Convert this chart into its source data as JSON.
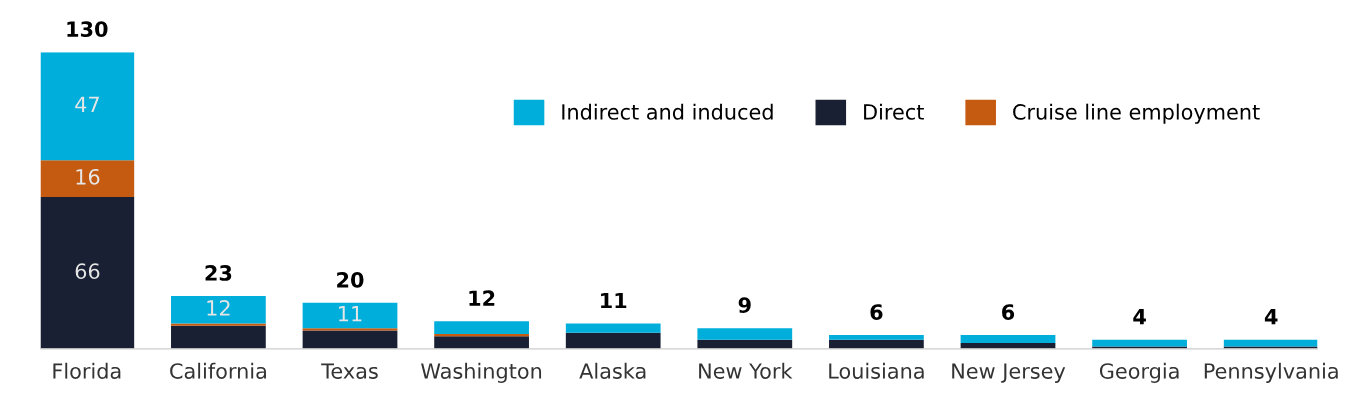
{
  "chart_data": {
    "type": "bar",
    "stacked": true,
    "categories": [
      "Florida",
      "California",
      "Texas",
      "Washington",
      "Alaska",
      "New York",
      "Louisiana",
      "New Jersey",
      "Georgia",
      "Pennsylvania"
    ],
    "series": [
      {
        "name": "Direct",
        "color": "#1a2033",
        "values": [
          66,
          10,
          8,
          5.5,
          7,
          4,
          4,
          2.5,
          1,
          1
        ],
        "value_labels": [
          "66",
          null,
          null,
          null,
          null,
          null,
          null,
          null,
          null,
          null
        ]
      },
      {
        "name": "Cruise line employment",
        "color": "#c55a11",
        "values": [
          16,
          1,
          1,
          1,
          0,
          0,
          0,
          0,
          0,
          0
        ],
        "value_labels": [
          "16",
          null,
          null,
          null,
          null,
          null,
          null,
          null,
          null,
          null
        ]
      },
      {
        "name": "Indirect and induced",
        "color": "#00aedb",
        "values": [
          47,
          12,
          11,
          5.5,
          4,
          5,
          2,
          3.5,
          3,
          3
        ],
        "value_labels": [
          "47",
          "12",
          "11",
          null,
          null,
          null,
          null,
          null,
          null,
          null
        ]
      }
    ],
    "totals": [
      "130",
      "23",
      "20",
      "12",
      "11",
      "9",
      "6",
      "6",
      "4",
      "4"
    ],
    "legend": "top right",
    "grid": false
  }
}
